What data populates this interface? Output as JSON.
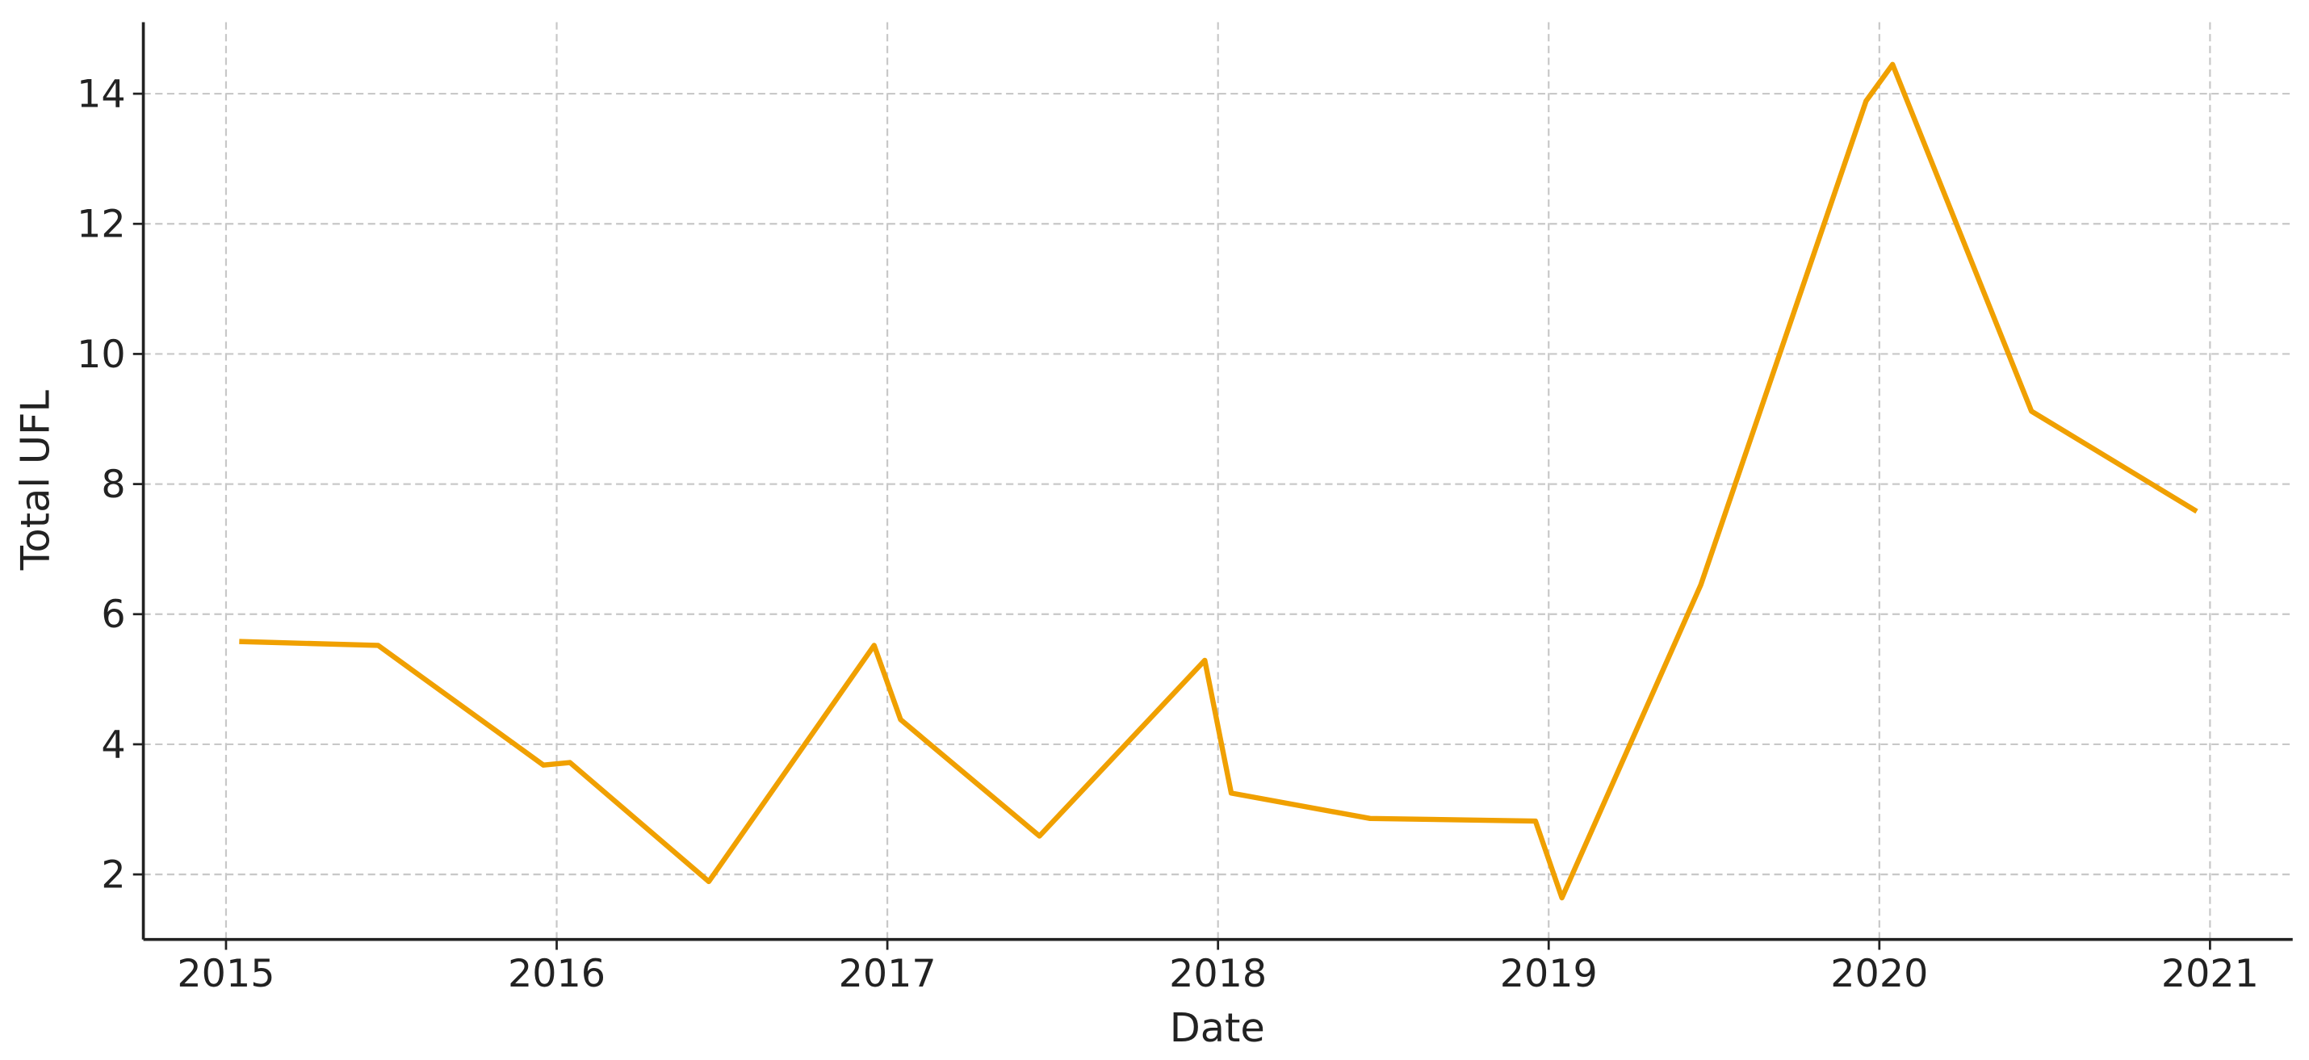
{
  "chart_data": {
    "type": "line",
    "x_label": "Date",
    "y_label": "Total UFL",
    "x": [
      2015.04,
      2015.46,
      2015.96,
      2016.04,
      2016.46,
      2016.96,
      2017.04,
      2017.46,
      2017.96,
      2018.04,
      2018.46,
      2018.96,
      2019.04,
      2019.46,
      2019.96,
      2020.04,
      2020.46,
      2020.96
    ],
    "series": [
      {
        "name": "Total UFL",
        "color": "#f0a000",
        "values": [
          5.58,
          5.52,
          3.68,
          3.72,
          1.89,
          5.52,
          4.38,
          2.59,
          5.29,
          3.25,
          2.86,
          2.82,
          1.64,
          6.45,
          13.89,
          14.45,
          9.12,
          7.58
        ]
      }
    ],
    "xlim": [
      2014.75,
      2021.25
    ],
    "xticks": [
      2015,
      2016,
      2017,
      2018,
      2019,
      2020,
      2021
    ],
    "ylim": [
      1,
      15.1
    ],
    "yticks": [
      2,
      4,
      6,
      8,
      10,
      12,
      14
    ],
    "grid": true
  }
}
